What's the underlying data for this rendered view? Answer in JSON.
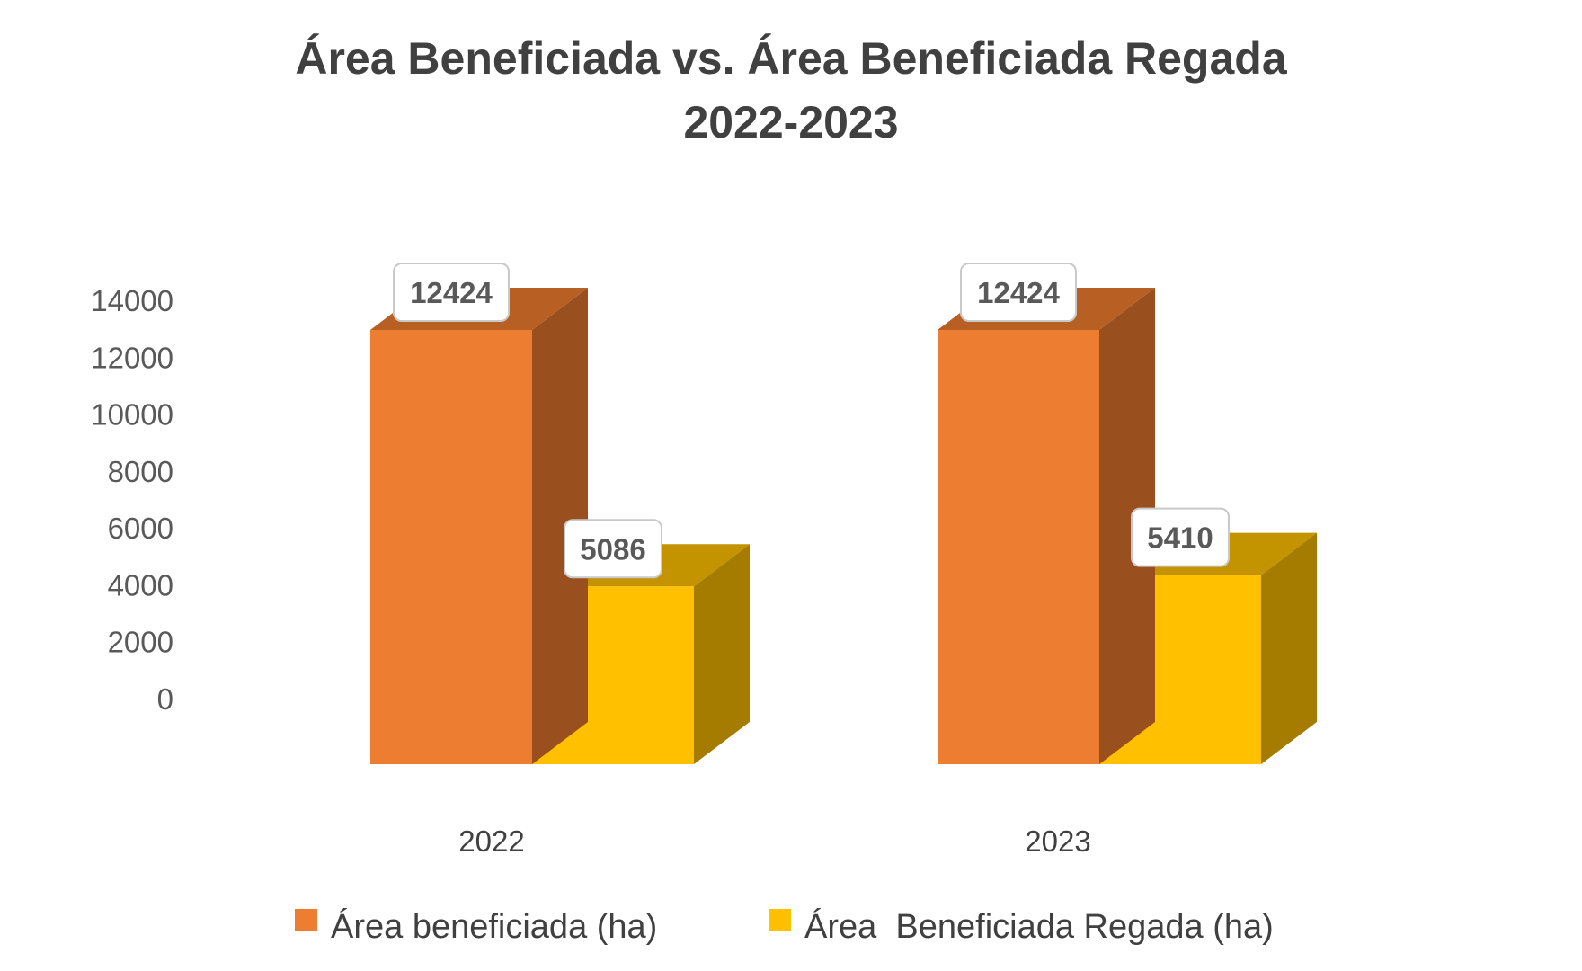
{
  "chart_data": {
    "type": "bar",
    "style": "3d-clustered-column",
    "title": "Área Beneficiada vs. Área Beneficiada Regada",
    "subtitle": "2022-2023",
    "xlabel": "",
    "ylabel": "",
    "categories": [
      "2022",
      "2023"
    ],
    "series": [
      {
        "name": "Área beneficiada (ha)",
        "color": "#ED7D31",
        "top_color": "#B85F24",
        "side_color": "#9A4F1E",
        "values": [
          12424,
          12424
        ]
      },
      {
        "name": "Área  Beneficiada Regada (ha)",
        "color": "#FFC000",
        "top_color": "#C49300",
        "side_color": "#A67C00",
        "values": [
          5086,
          5410
        ]
      }
    ],
    "data_labels": [
      [
        "12424",
        "12424"
      ],
      [
        "5086",
        "5410"
      ]
    ],
    "yticks": [
      0,
      2000,
      4000,
      6000,
      8000,
      10000,
      12000,
      14000
    ],
    "ytick_labels": [
      "0",
      "2000",
      "4000",
      "6000",
      "8000",
      "10000",
      "12000",
      "14000"
    ],
    "ylim": [
      0,
      14000
    ],
    "grid": false,
    "legend_position": "bottom"
  }
}
